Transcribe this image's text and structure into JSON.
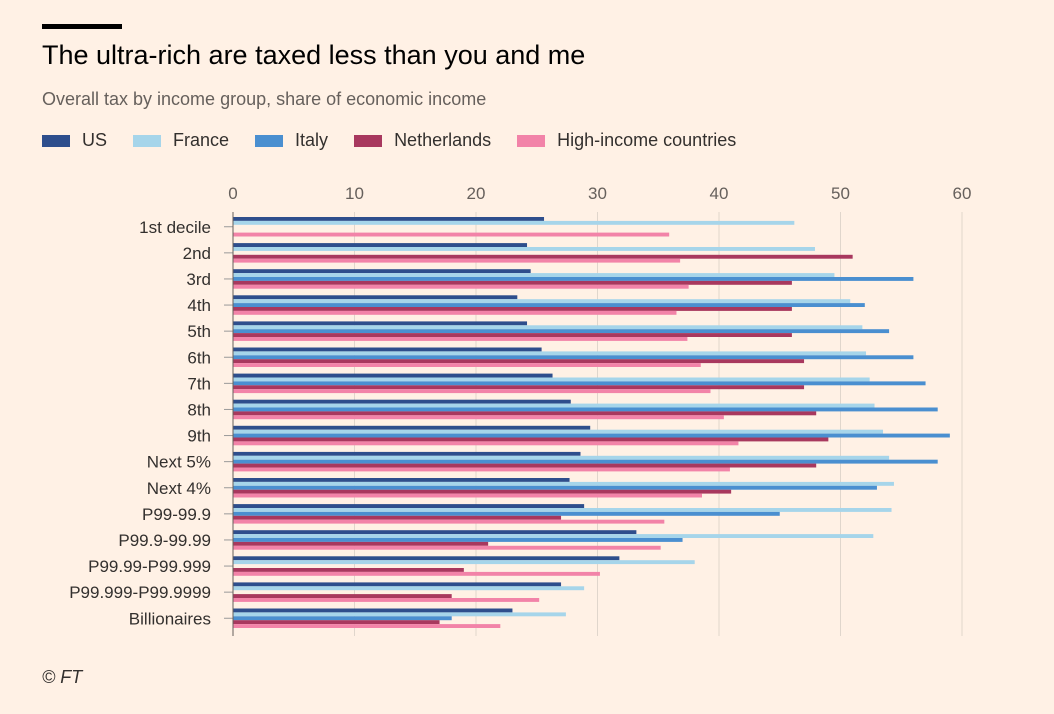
{
  "title": "The ultra-rich are taxed less than you and me",
  "subtitle": "Overall tax by income group, share of economic income",
  "source": "© FT",
  "colors": {
    "US": "#2E4E8C",
    "France": "#A6D5EA",
    "Italy": "#4A8FD0",
    "Netherlands": "#A8385E",
    "High-income countries": "#F283A8",
    "background": "#FFF1E5",
    "grid": "#E0D6CC"
  },
  "chart_data": {
    "type": "bar",
    "orientation": "horizontal",
    "xlim": [
      0,
      60
    ],
    "xticks": [
      0,
      10,
      20,
      30,
      40,
      50,
      60
    ],
    "legend_position": "top-left",
    "grid": true,
    "categories": [
      "1st decile",
      "2nd",
      "3rd",
      "4th",
      "5th",
      "6th",
      "7th",
      "8th",
      "9th",
      "Next 5%",
      "Next 4%",
      "P99-99.9",
      "P99.9-99.99",
      "P99.99-P99.999",
      "P99.999-P99.9999",
      "Billionaires"
    ],
    "series": [
      {
        "name": "US",
        "values": [
          25.6,
          24.2,
          24.5,
          23.4,
          24.2,
          25.4,
          26.3,
          27.8,
          29.4,
          28.6,
          27.7,
          28.9,
          33.2,
          31.8,
          27.0,
          23.0
        ]
      },
      {
        "name": "France",
        "values": [
          46.2,
          47.9,
          49.5,
          50.8,
          51.8,
          52.1,
          52.4,
          52.8,
          53.5,
          54.0,
          54.4,
          54.2,
          52.7,
          38.0,
          28.9,
          27.4
        ]
      },
      {
        "name": "Italy",
        "values": [
          null,
          null,
          56.0,
          52.0,
          54.0,
          56.0,
          57.0,
          58.0,
          59.0,
          58.0,
          53.0,
          45.0,
          37.0,
          null,
          null,
          18.0
        ]
      },
      {
        "name": "Netherlands",
        "values": [
          null,
          51.0,
          46.0,
          46.0,
          46.0,
          47.0,
          47.0,
          48.0,
          49.0,
          48.0,
          41.0,
          27.0,
          21.0,
          19.0,
          18.0,
          17.0
        ]
      },
      {
        "name": "High-income countries",
        "values": [
          35.9,
          36.8,
          37.5,
          36.5,
          37.4,
          38.5,
          39.3,
          40.4,
          41.6,
          40.9,
          38.6,
          35.5,
          35.2,
          30.2,
          25.2,
          22.0
        ]
      }
    ]
  }
}
